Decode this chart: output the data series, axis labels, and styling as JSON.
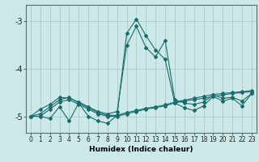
{
  "xlabel": "Humidex (Indice chaleur)",
  "background_color": "#cce8e8",
  "grid_color": "#aacccc",
  "line_color": "#1a6b6b",
  "x_values": [
    0,
    1,
    2,
    3,
    4,
    5,
    6,
    7,
    8,
    9,
    10,
    11,
    12,
    13,
    14,
    15,
    16,
    17,
    18,
    19,
    20,
    21,
    22,
    23
  ],
  "series": [
    [
      -5.0,
      -5.0,
      -4.85,
      -4.7,
      -4.65,
      -4.75,
      -4.85,
      -4.95,
      -5.0,
      -5.0,
      -4.95,
      -4.9,
      -4.85,
      -4.82,
      -4.78,
      -4.72,
      -4.68,
      -4.65,
      -4.62,
      -4.58,
      -4.55,
      -4.52,
      -4.5,
      -4.48
    ],
    [
      -5.0,
      -4.95,
      -4.8,
      -4.65,
      -4.6,
      -4.72,
      -4.82,
      -4.92,
      -4.98,
      -4.98,
      -4.92,
      -4.88,
      -4.83,
      -4.8,
      -4.76,
      -4.7,
      -4.66,
      -4.62,
      -4.58,
      -4.54,
      -4.52,
      -4.5,
      -4.48,
      -4.46
    ],
    [
      -5.0,
      -4.85,
      -4.75,
      -4.6,
      -4.62,
      -4.7,
      -4.8,
      -4.9,
      -4.95,
      -4.9,
      -3.5,
      -3.1,
      -3.55,
      -3.75,
      -3.4,
      -4.65,
      -4.72,
      -4.75,
      -4.7,
      -4.55,
      -4.62,
      -4.6,
      -4.68,
      -4.52
    ],
    [
      -5.0,
      -5.0,
      -5.05,
      -4.8,
      -5.1,
      -4.72,
      -5.0,
      -5.1,
      -5.15,
      -4.98,
      -3.25,
      -2.95,
      -3.3,
      -3.6,
      -3.8,
      -4.72,
      -4.82,
      -4.88,
      -4.78,
      -4.58,
      -4.68,
      -4.62,
      -4.78,
      -4.52
    ]
  ],
  "ylim": [
    -5.35,
    -2.65
  ],
  "yticks": [
    -5,
    -4,
    -3
  ],
  "xlim": [
    -0.5,
    23.5
  ],
  "marker": "D",
  "markersize": 2.0,
  "linewidth": 0.8,
  "xlabel_fontsize": 6.5,
  "tick_labelsize": 5.5,
  "ytick_labelsize": 7
}
